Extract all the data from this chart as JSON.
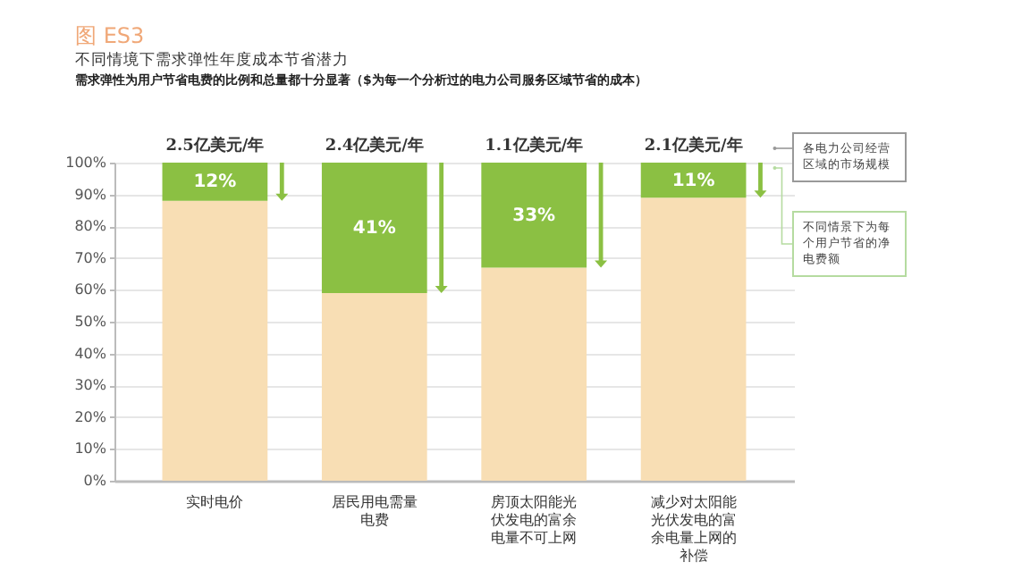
{
  "chart_data": {
    "type": "bar",
    "title": "图 ES3",
    "subtitle": "不同情境下需求弹性年度成本节省潜力",
    "categories": [
      "实时电价",
      "居民用电需量电费",
      "房顶太阳能光伏发电的富余电量不可上网",
      "减少对太阳能光伏发电的富余电量上网的补偿"
    ],
    "stacked": true,
    "series": [
      {
        "color": "#f8deb4",
        "values": [
          88,
          59,
          67,
          89
        ]
      },
      {
        "color": "#8bc043",
        "values": [
          12,
          41,
          33,
          11
        ],
        "value_labels": [
          "12%",
          "41%",
          "33%",
          "11%"
        ]
      }
    ],
    "ylim": [
      0,
      100
    ],
    "yticks": [
      {
        "value": 0,
        "label": "0%"
      },
      {
        "value": 10,
        "label": "10%"
      },
      {
        "value": 20,
        "label": "20%"
      },
      {
        "value": 30,
        "label": "30%"
      },
      {
        "value": 40,
        "label": "40%"
      },
      {
        "value": 50,
        "label": "50%"
      },
      {
        "value": 60,
        "label": "60%"
      },
      {
        "value": 70,
        "label": "70%"
      },
      {
        "value": 80,
        "label": "80%"
      },
      {
        "value": 90,
        "label": "90%"
      },
      {
        "value": 100,
        "label": "100%"
      }
    ],
    "grid": "y",
    "legend": false,
    "annotations": [
      "需求弹性为用户节省电费的比例和总量都十分显著（$为每一个分析过的电力公司服务区域节省的成本）",
      {
        "text": "2.5亿美元/年",
        "x": "实时电价",
        "y": 100
      },
      {
        "text": "2.4亿美元/年",
        "x": "居民用电需量电费",
        "y": 100
      },
      {
        "text": "1.1亿美元/年",
        "x": "房顶太阳能光伏发电的富余电量不可上网",
        "y": 100
      },
      {
        "text": "2.1亿美元/年",
        "x": "减少对太阳能光伏发电的富余电量上网的补偿",
        "y": 100
      },
      "各电力公司经营区域的市场规模",
      "不同情景下为每个用户节省的净电费额"
    ]
  }
}
